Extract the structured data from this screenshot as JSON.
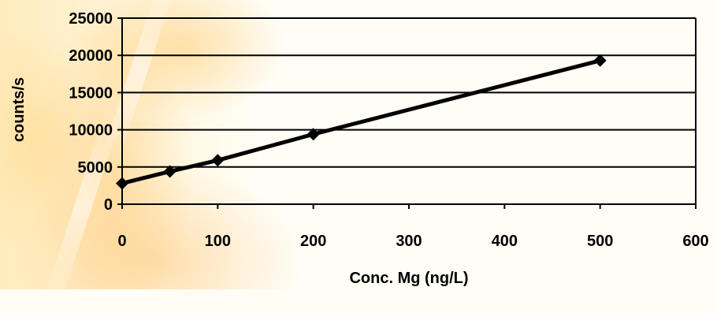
{
  "chart_data": {
    "type": "line",
    "title": "",
    "xlabel": "Conc. Mg (ng/L)",
    "ylabel": "counts/s",
    "xlim": [
      0,
      600
    ],
    "ylim": [
      0,
      25000
    ],
    "x_ticks": [
      "0",
      "100",
      "200",
      "300",
      "400",
      "500",
      "600"
    ],
    "y_ticks": [
      "0",
      "5000",
      "10000",
      "15000",
      "20000",
      "25000"
    ],
    "grid": "horizontal",
    "legend": "none",
    "series": [
      {
        "x": [
          0,
          50,
          100,
          200,
          500
        ],
        "y": [
          2800,
          4400,
          5900,
          9400,
          19300
        ],
        "marker": "diamond",
        "color": "#000000"
      }
    ]
  }
}
